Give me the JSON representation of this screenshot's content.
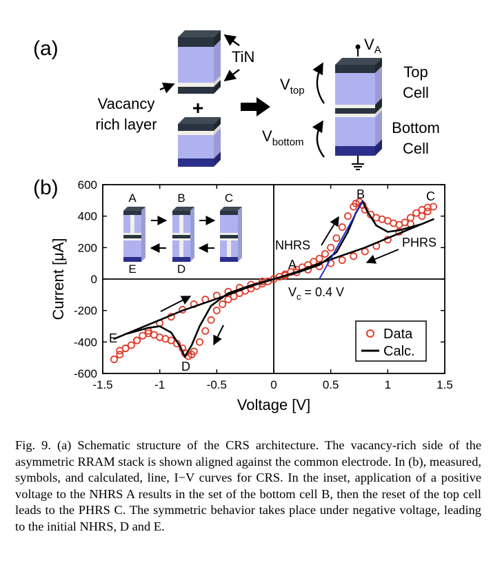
{
  "panel_a": {
    "label": "(a)",
    "tin": "TiN",
    "vacancy_line1": "Vacancy",
    "vacancy_line2": "rich layer",
    "plus": "+",
    "va_main": "V",
    "va_sub": "A",
    "vtop_main": "V",
    "vtop_sub": "top",
    "vbottom_main": "V",
    "vbottom_sub": "bottom",
    "top_cell_line1": "Top",
    "top_cell_line2": "Cell",
    "bottom_cell_line1": "Bottom",
    "bottom_cell_line2": "Cell"
  },
  "panel_b": {
    "label": "(b)",
    "inset_labels": [
      "A",
      "B",
      "C",
      "E",
      "D"
    ],
    "point_labels": {
      "A": "A",
      "B": "B",
      "C": "C",
      "D": "D",
      "E": "E"
    },
    "nhrs": "NHRS",
    "phrs": "PHRS",
    "vc_main": "V",
    "vc_sub": "c",
    "vc_value": " = 0.4 V"
  },
  "chart_data": {
    "type": "scatter",
    "xlabel": "Voltage [V]",
    "ylabel": "Current [μA]",
    "xlim": [
      -1.5,
      1.5
    ],
    "ylim": [
      -600,
      600
    ],
    "xticks": [
      "-1.5",
      "-1",
      "-0.5",
      "0",
      "0.5",
      "1",
      "1.5"
    ],
    "yticks": [
      "600",
      "400",
      "200",
      "0",
      "-200",
      "-400",
      "-600"
    ],
    "legend": {
      "position": "bottom-right",
      "entries": [
        "Data",
        "Calc."
      ]
    },
    "series": [
      {
        "name": "Data",
        "marker": "open-circle",
        "color": "#e03c2a",
        "x": [
          0.0,
          0.05,
          0.1,
          0.15,
          0.2,
          0.25,
          0.3,
          0.35,
          0.4,
          0.45,
          0.5,
          0.55,
          0.6,
          0.65,
          0.7,
          0.72,
          0.75,
          0.78,
          0.8,
          0.85,
          0.9,
          0.95,
          1.0,
          1.05,
          1.1,
          1.15,
          1.2,
          1.25,
          1.3,
          1.35,
          1.4,
          1.35,
          1.3,
          1.2,
          1.1,
          1.0,
          0.9,
          0.8,
          0.7,
          0.6,
          0.5,
          0.4,
          0.3,
          0.2,
          0.1,
          0.0,
          -0.05,
          -0.1,
          -0.15,
          -0.2,
          -0.25,
          -0.3,
          -0.35,
          -0.4,
          -0.45,
          -0.5,
          -0.55,
          -0.6,
          -0.65,
          -0.7,
          -0.72,
          -0.75,
          -0.78,
          -0.8,
          -0.85,
          -0.9,
          -0.95,
          -1.0,
          -1.05,
          -1.1,
          -1.15,
          -1.2,
          -1.25,
          -1.3,
          -1.35,
          -1.4,
          -1.35,
          -1.3,
          -1.2,
          -1.1,
          -1.0,
          -0.9,
          -0.8,
          -0.7,
          -0.6,
          -0.5,
          -0.4,
          -0.3,
          -0.2,
          -0.1
        ],
        "y": [
          0,
          15,
          30,
          45,
          60,
          75,
          90,
          110,
          130,
          160,
          200,
          260,
          330,
          400,
          460,
          480,
          490,
          470,
          440,
          410,
          390,
          380,
          370,
          355,
          345,
          360,
          390,
          420,
          440,
          455,
          460,
          430,
          400,
          350,
          300,
          250,
          210,
          175,
          145,
          120,
          100,
          80,
          60,
          42,
          22,
          0,
          -15,
          -30,
          -45,
          -60,
          -75,
          -90,
          -110,
          -130,
          -160,
          -200,
          -260,
          -330,
          -400,
          -460,
          -480,
          -490,
          -470,
          -440,
          -410,
          -390,
          -380,
          -370,
          -355,
          -345,
          -360,
          -390,
          -420,
          -440,
          -455,
          -510,
          -480,
          -440,
          -390,
          -330,
          -280,
          -240,
          -195,
          -160,
          -130,
          -105,
          -80,
          -55,
          -35,
          -15
        ]
      },
      {
        "name": "Calc.",
        "marker": "line",
        "color": "#000000",
        "x": [
          0.0,
          0.2,
          0.4,
          0.55,
          0.65,
          0.72,
          0.78,
          0.82,
          0.9,
          1.0,
          1.1,
          1.2,
          1.3,
          1.4,
          1.3,
          1.2,
          1.0,
          0.8,
          0.6,
          0.4,
          0.2,
          0.0,
          -0.2,
          -0.4,
          -0.55,
          -0.65,
          -0.72,
          -0.78,
          -0.82,
          -0.9,
          -1.0,
          -1.1,
          -1.2,
          -1.3,
          -1.4,
          -1.3,
          -1.2,
          -1.0,
          -0.8,
          -0.6,
          -0.4,
          -0.2,
          0.0
        ],
        "y": [
          0,
          40,
          90,
          170,
          300,
          420,
          495,
          430,
          340,
          300,
          310,
          330,
          350,
          380,
          350,
          320,
          260,
          200,
          150,
          100,
          45,
          0,
          -40,
          -90,
          -170,
          -300,
          -420,
          -495,
          -430,
          -340,
          -300,
          -310,
          -330,
          -350,
          -380,
          -350,
          -320,
          -260,
          -200,
          -150,
          -100,
          -45,
          0
        ]
      },
      {
        "name": "",
        "marker": "line",
        "color": "#1f2fd0",
        "x": [
          0.4,
          0.78
        ],
        "y": [
          0,
          495
        ]
      }
    ]
  },
  "caption": "Fig. 9.    (a) Schematic structure of the CRS architecture. The vacancy-rich side of the asymmetric RRAM stack is shown aligned against the common electrode. In (b), measured, symbols, and calculated, line, I−V curves for CRS. In the inset, application of a positive voltage to the NHRS A results in the set of the bottom cell B, then the reset of the top cell leads to the PHRS C. The symmetric behavior takes place under negative voltage, leading to the initial NHRS, D and E."
}
